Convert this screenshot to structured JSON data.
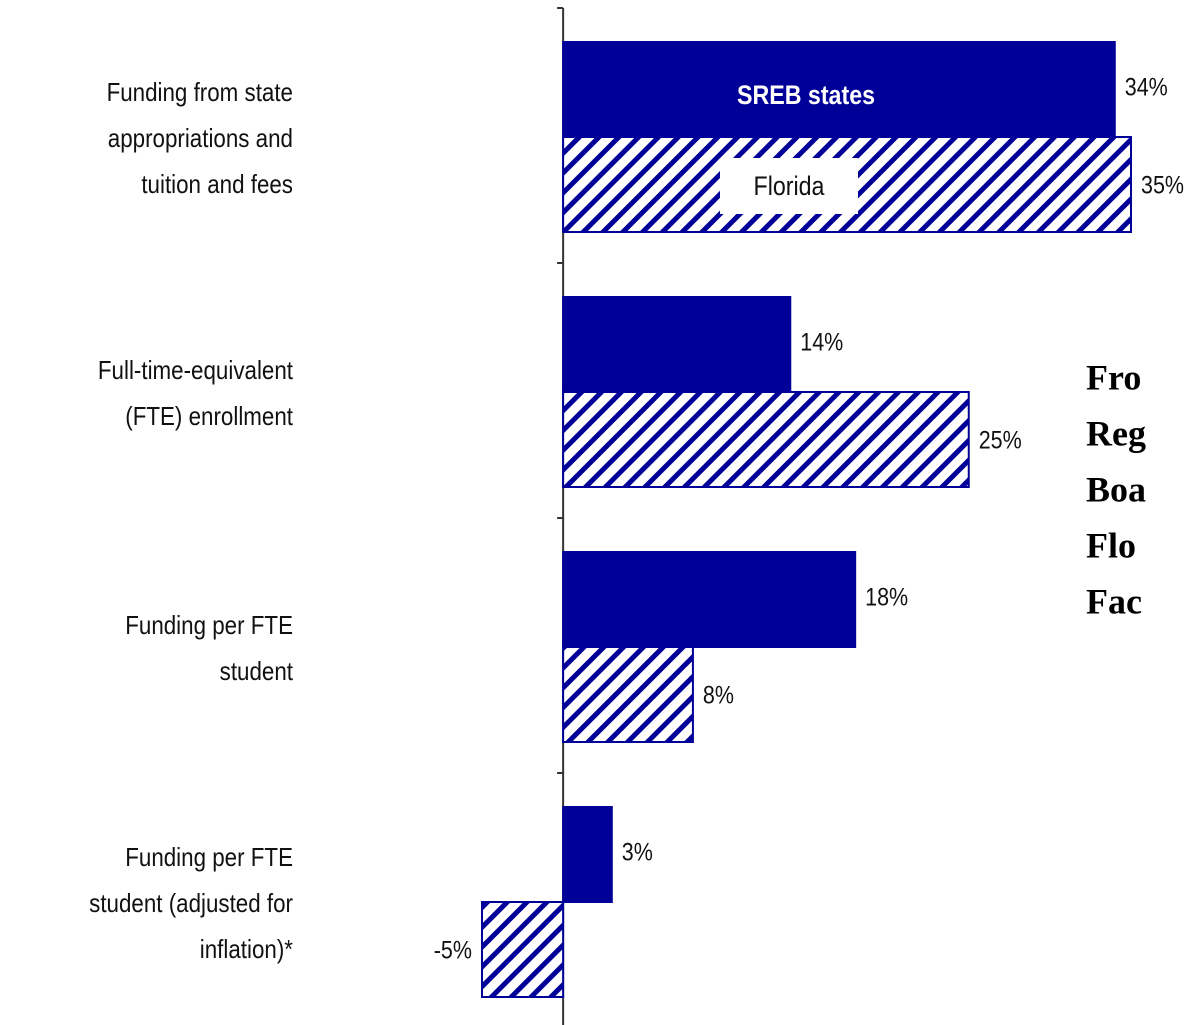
{
  "chart_data": {
    "type": "barh",
    "categories": [
      "Funding from state\nappropriations and\ntuition and fees",
      "Full-time-equivalent\n(FTE) enrollment",
      "Funding per FTE\nstudent",
      "Funding per FTE\nstudent (adjusted for\ninflation)*"
    ],
    "series": [
      {
        "name": "SREB states",
        "color": "#000099",
        "pattern": "solid",
        "values": [
          34,
          14,
          18,
          3
        ],
        "value_labels": [
          "34%",
          "14%",
          "18%",
          "3%"
        ]
      },
      {
        "name": "Florida",
        "color": "#000099",
        "pattern": "hatch",
        "values": [
          35,
          25,
          8,
          -5
        ],
        "value_labels": [
          "35%",
          "25%",
          "8%",
          "-5%"
        ]
      }
    ],
    "xlim": [
      -5,
      35
    ],
    "annotation": [
      "Fro",
      "Reg",
      "Boa",
      "Flo",
      "Fac"
    ]
  }
}
